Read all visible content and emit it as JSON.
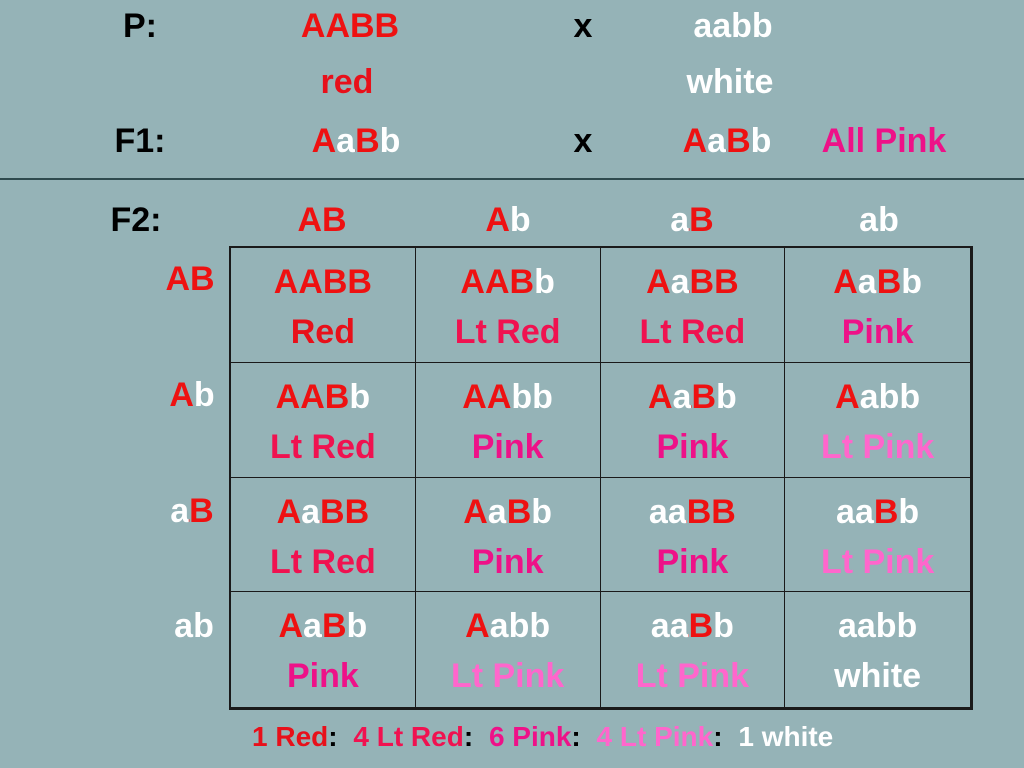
{
  "colors": {
    "background": "#95b3b7",
    "dominant": "#ee1111",
    "recessive": "#ffffff",
    "Red": "#e8101a",
    "Lt Red": "#f01250",
    "Pink": "#ee1188",
    "Lt Pink": "#ff66cc",
    "white": "#ffffff"
  },
  "cross": {
    "p_label": "P:",
    "p_parent1": "AABB",
    "p_x": "x",
    "p_parent2": "aabb",
    "p_pheno1": "red",
    "p_pheno2": "white",
    "f1_label": "F1:",
    "f1_parent1": "AaBb",
    "f1_x": "x",
    "f1_parent2": "AaBb",
    "f1_result": "All Pink"
  },
  "punnett": {
    "label": "F2:",
    "col_headers": [
      "AB",
      "Ab",
      "aB",
      "ab"
    ],
    "row_headers": [
      "AB",
      "Ab",
      "aB",
      "ab"
    ],
    "cells": [
      {
        "genotype": "AABB",
        "phenotype": "Red"
      },
      {
        "genotype": "AABb",
        "phenotype": "Lt Red"
      },
      {
        "genotype": "AaBB",
        "phenotype": "Lt Red"
      },
      {
        "genotype": "AaBb",
        "phenotype": "Pink"
      },
      {
        "genotype": "AABb",
        "phenotype": "Lt Red"
      },
      {
        "genotype": "AAbb",
        "phenotype": "Pink"
      },
      {
        "genotype": "AaBb",
        "phenotype": "Pink"
      },
      {
        "genotype": "Aabb",
        "phenotype": "Lt Pink"
      },
      {
        "genotype": "AaBB",
        "phenotype": "Lt Red"
      },
      {
        "genotype": "AaBb",
        "phenotype": "Pink"
      },
      {
        "genotype": "aaBB",
        "phenotype": "Pink"
      },
      {
        "genotype": "aaBb",
        "phenotype": "Lt Pink"
      },
      {
        "genotype": "AaBb",
        "phenotype": "Pink"
      },
      {
        "genotype": "Aabb",
        "phenotype": "Lt Pink"
      },
      {
        "genotype": "aaBb",
        "phenotype": "Lt Pink"
      },
      {
        "genotype": "aabb",
        "phenotype": "white"
      }
    ]
  },
  "ratio": [
    {
      "text": "1 Red",
      "phenotype": "Red"
    },
    {
      "text": "4 Lt Red",
      "phenotype": "Lt Red"
    },
    {
      "text": "6 Pink",
      "phenotype": "Pink"
    },
    {
      "text": "4 Lt Pink",
      "phenotype": "Lt Pink"
    },
    {
      "text": "1 white",
      "phenotype": "white"
    }
  ],
  "ratio_separator": ":"
}
